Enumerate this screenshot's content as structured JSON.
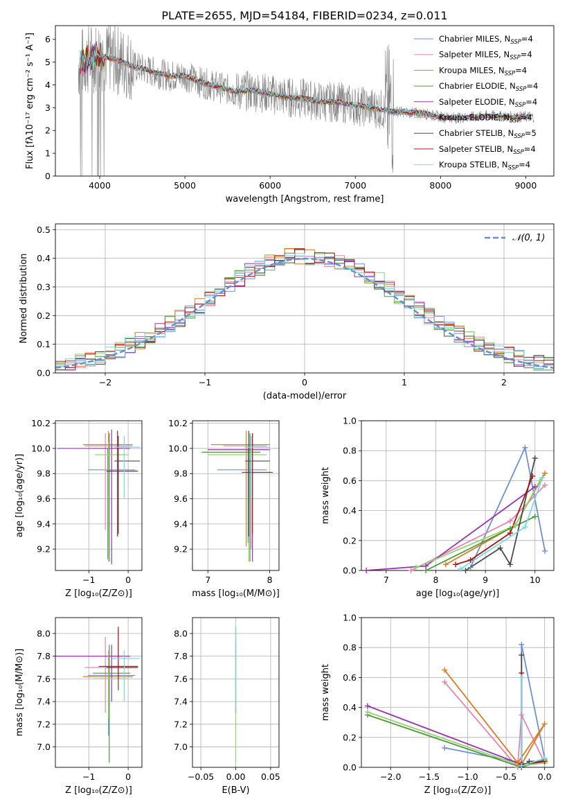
{
  "title": "PLATE=2655, MJD=54184, FIBERID=0234, z=0.011",
  "colors": [
    "#6a8fdc",
    "#e684b4",
    "#e07820",
    "#4d9a3a",
    "#9b30b6",
    "#95d36e",
    "#4a4a4a",
    "#b01414",
    "#7ad9e6"
  ],
  "legend": [
    {
      "name": "Chabrier MILES",
      "n": "4"
    },
    {
      "name": "Salpeter MILES",
      "n": "4"
    },
    {
      "name": "Kroupa MILES",
      "n": "4"
    },
    {
      "name": "Chabrier ELODIE",
      "n": "4"
    },
    {
      "name": "Salpeter ELODIE",
      "n": "4"
    },
    {
      "name": "Kroupa ELODIE",
      "n": "4"
    },
    {
      "name": "Chabrier STELIB",
      "n": "5"
    },
    {
      "name": "Salpeter STELIB",
      "n": "4"
    },
    {
      "name": "Kroupa STELIB",
      "n": "4"
    }
  ],
  "chart_data": [
    {
      "id": "spectrum",
      "type": "line",
      "xlabel": "wavelength [Angstrom, rest frame]",
      "ylabel": "Flux [fλ10⁻¹⁷ erg cm⁻² s⁻¹ A⁻¹]",
      "xlim": [
        3480,
        9330
      ],
      "ylim": [
        0,
        6.6
      ],
      "xticks": [
        "4000",
        "5000",
        "6000",
        "7000",
        "8000",
        "9000"
      ],
      "yticks": [
        "0",
        "1",
        "2",
        "3",
        "4",
        "5",
        "6"
      ],
      "data_range": [
        3750,
        9100
      ],
      "continuum_x": [
        3750,
        3850,
        4000,
        4200,
        4400,
        4600,
        4800,
        5000,
        5200,
        5400,
        5600,
        5800,
        6000,
        6200,
        6400,
        6600,
        6800,
        7000,
        7200,
        7400,
        7600,
        7800,
        8000,
        8200,
        8400,
        8600,
        8800,
        9000,
        9100
      ],
      "continuum_y": [
        4.9,
        5.1,
        5.3,
        5.1,
        4.8,
        4.6,
        4.4,
        4.4,
        4.1,
        3.9,
        3.7,
        3.75,
        3.6,
        3.45,
        3.4,
        3.25,
        3.25,
        3.1,
        3.0,
        2.85,
        2.8,
        2.75,
        2.6,
        2.55,
        2.6,
        2.65,
        2.6,
        2.6,
        2.6
      ]
    },
    {
      "id": "residuals",
      "type": "line",
      "xlabel": "(data-model)/error",
      "ylabel": "Normed distribution",
      "xlim": [
        -2.5,
        2.5
      ],
      "ylim": [
        0,
        0.52
      ],
      "xticks": [
        "−2",
        "−1",
        "0",
        "1",
        "2"
      ],
      "yticks": [
        "0.0",
        "0.1",
        "0.2",
        "0.3",
        "0.4",
        "0.5"
      ],
      "gaussian_label": "𝒩(0, 1)",
      "bin_width": 0.1,
      "bin_centers": [
        -2.45,
        -2.35,
        -2.25,
        -2.15,
        -2.05,
        -1.95,
        -1.85,
        -1.75,
        -1.65,
        -1.55,
        -1.45,
        -1.35,
        -1.25,
        -1.15,
        -1.05,
        -0.95,
        -0.85,
        -0.75,
        -0.65,
        -0.55,
        -0.45,
        -0.35,
        -0.25,
        -0.15,
        -0.05,
        0.05,
        0.15,
        0.25,
        0.35,
        0.45,
        0.55,
        0.65,
        0.75,
        0.85,
        0.95,
        1.05,
        1.15,
        1.25,
        1.35,
        1.45,
        1.55,
        1.65,
        1.75,
        1.85,
        1.95,
        2.05,
        2.15,
        2.25,
        2.35,
        2.45
      ],
      "series_mean": [
        0.022,
        0.028,
        0.038,
        0.048,
        0.058,
        0.07,
        0.082,
        0.098,
        0.112,
        0.13,
        0.148,
        0.17,
        0.19,
        0.212,
        0.234,
        0.257,
        0.28,
        0.305,
        0.33,
        0.352,
        0.37,
        0.385,
        0.395,
        0.41,
        0.405,
        0.4,
        0.4,
        0.395,
        0.39,
        0.375,
        0.36,
        0.34,
        0.32,
        0.295,
        0.27,
        0.247,
        0.222,
        0.2,
        0.178,
        0.157,
        0.137,
        0.118,
        0.101,
        0.087,
        0.074,
        0.062,
        0.051,
        0.041,
        0.033,
        0.026
      ]
    },
    {
      "id": "age_vs_z",
      "type": "scatter",
      "xlabel": "Z [log₁₀(Z/Z⊙)]",
      "ylabel": "age  [log₁₀(age/yr)]",
      "xlim": [
        -1.85,
        0.35
      ],
      "ylim": [
        9.03,
        10.22
      ],
      "xticks": [
        "−1",
        "0"
      ],
      "yticks": [
        "9.2",
        "9.4",
        "9.6",
        "9.8",
        "10.0",
        "10.2"
      ],
      "points": [
        {
          "x": -0.52,
          "y": 9.83,
          "xe": [
            -1.02,
            0.18
          ],
          "ye": [
            9.12,
            10.0
          ]
        },
        {
          "x": -0.58,
          "y": 10.02,
          "xe": [
            -1.1,
            0.1
          ],
          "ye": [
            9.35,
            10.12
          ]
        },
        {
          "x": -0.5,
          "y": 10.03,
          "xe": [
            -1.15,
            0.12
          ],
          "ye": [
            9.22,
            10.14
          ]
        },
        {
          "x": -0.48,
          "y": 10.0,
          "xe": [
            -0.9,
            0.05
          ],
          "ye": [
            9.1,
            10.12
          ]
        },
        {
          "x": -0.42,
          "y": 10.0,
          "xe": [
            -1.8,
            0.05
          ],
          "ye": [
            9.08,
            10.15
          ]
        },
        {
          "x": -0.5,
          "y": 9.95,
          "xe": [
            -0.85,
            0.0
          ],
          "ye": [
            9.1,
            10.05
          ]
        },
        {
          "x": -0.25,
          "y": 9.9,
          "xe": [
            -0.35,
            0.3
          ],
          "ye": [
            9.32,
            10.1
          ]
        },
        {
          "x": -0.27,
          "y": 9.82,
          "xe": [
            -0.55,
            0.25
          ],
          "ye": [
            9.3,
            10.14
          ]
        },
        {
          "x": -0.1,
          "y": 10.01,
          "xe": [
            -0.35,
            0.3
          ],
          "ye": [
            9.6,
            10.1
          ]
        }
      ]
    },
    {
      "id": "age_vs_mass",
      "type": "scatter",
      "xlabel": "mass [log₁₀(M/M⊙)]",
      "ylabel": "",
      "xlim": [
        6.75,
        8.15
      ],
      "ylim": [
        9.03,
        10.22
      ],
      "xticks": [
        "7",
        "8"
      ],
      "yticks": [
        "9.2",
        "9.4",
        "9.6",
        "9.8",
        "10.0",
        "10.2"
      ],
      "points": [
        {
          "x": 7.65,
          "y": 9.83,
          "xe": [
            7.15,
            7.95
          ],
          "ye": [
            9.25,
            10.0
          ]
        },
        {
          "x": 7.7,
          "y": 10.02,
          "xe": [
            7.25,
            7.95
          ],
          "ye": [
            9.2,
            10.1
          ]
        },
        {
          "x": 7.62,
          "y": 10.03,
          "xe": [
            7.05,
            8.0
          ],
          "ye": [
            9.22,
            10.14
          ]
        },
        {
          "x": 7.68,
          "y": 9.97,
          "xe": [
            6.9,
            7.85
          ],
          "ye": [
            9.1,
            10.12
          ]
        },
        {
          "x": 7.72,
          "y": 9.99,
          "xe": [
            7.0,
            8.0
          ],
          "ye": [
            9.1,
            10.12
          ]
        },
        {
          "x": 7.66,
          "y": 9.95,
          "xe": [
            7.0,
            7.95
          ],
          "ye": [
            9.1,
            10.02
          ]
        },
        {
          "x": 7.66,
          "y": 9.9,
          "xe": [
            7.6,
            8.0
          ],
          "ye": [
            9.3,
            10.14
          ]
        },
        {
          "x": 7.72,
          "y": 9.81,
          "xe": [
            7.55,
            8.05
          ],
          "ye": [
            9.32,
            10.12
          ]
        },
        {
          "x": 7.7,
          "y": 10.01,
          "xe": [
            7.6,
            8.0
          ],
          "ye": [
            9.6,
            10.1
          ]
        }
      ]
    },
    {
      "id": "weight_vs_age",
      "type": "line",
      "xlabel": "age  [log₁₀(age/yr)]",
      "ylabel": "mass weight",
      "xlim": [
        6.5,
        10.38
      ],
      "ylim": [
        0,
        1.0
      ],
      "xticks": [
        "7",
        "8",
        "9",
        "10"
      ],
      "yticks": [
        "0.0",
        "0.2",
        "0.4",
        "0.6",
        "0.8",
        "1.0"
      ],
      "series": [
        {
          "x": [
            8.7,
            9.8,
            10.2
          ],
          "y": [
            0.02,
            0.82,
            0.13
          ]
        },
        {
          "x": [
            7.5,
            9.5,
            10.2
          ],
          "y": [
            0.0,
            0.33,
            0.57
          ]
        },
        {
          "x": [
            8.2,
            9.6,
            10.2
          ],
          "y": [
            0.04,
            0.3,
            0.65
          ]
        },
        {
          "x": [
            7.8,
            9.5,
            10.0
          ],
          "y": [
            0.0,
            0.28,
            0.36
          ]
        },
        {
          "x": [
            6.6,
            7.8,
            10.0
          ],
          "y": [
            0.0,
            0.03,
            0.56
          ]
        },
        {
          "x": [
            7.6,
            9.6,
            10.1
          ],
          "y": [
            0.02,
            0.3,
            0.6
          ]
        },
        {
          "x": [
            8.6,
            9.3,
            9.5,
            10.0
          ],
          "y": [
            0.0,
            0.15,
            0.04,
            0.75
          ]
        },
        {
          "x": [
            8.4,
            8.7,
            9.5,
            9.95
          ],
          "y": [
            0.04,
            0.07,
            0.25,
            0.63
          ]
        },
        {
          "x": [
            8.5,
            9.8,
            10.15
          ],
          "y": [
            0.01,
            0.29,
            0.62
          ]
        }
      ]
    },
    {
      "id": "mass_vs_z",
      "type": "scatter",
      "xlabel": "Z [log₁₀(Z/Z⊙)]",
      "ylabel": "mass [log₁₀(M/M⊙)]",
      "xlim": [
        -1.85,
        0.35
      ],
      "ylim": [
        6.82,
        8.14
      ],
      "xticks": [
        "−1",
        "0"
      ],
      "yticks": [
        "7.0",
        "7.2",
        "7.4",
        "7.6",
        "7.8",
        "8.0"
      ],
      "points": [
        {
          "x": -0.5,
          "y": 7.63,
          "xe": [
            -1.02,
            0.18
          ],
          "ye": [
            7.1,
            7.8
          ]
        },
        {
          "x": -0.58,
          "y": 7.7,
          "xe": [
            -1.1,
            0.1
          ],
          "ye": [
            7.3,
            7.97
          ]
        },
        {
          "x": -0.5,
          "y": 7.62,
          "xe": [
            -1.15,
            0.12
          ],
          "ye": [
            7.4,
            7.85
          ]
        },
        {
          "x": -0.48,
          "y": 7.65,
          "xe": [
            -0.9,
            0.05
          ],
          "ye": [
            6.86,
            7.9
          ]
        },
        {
          "x": -0.42,
          "y": 7.8,
          "xe": [
            -1.85,
            0.05
          ],
          "ye": [
            7.4,
            7.9
          ]
        },
        {
          "x": -0.5,
          "y": 7.6,
          "xe": [
            -0.9,
            0.0
          ],
          "ye": [
            7.25,
            7.85
          ]
        },
        {
          "x": -0.25,
          "y": 7.71,
          "xe": [
            -0.75,
            0.25
          ],
          "ye": [
            7.5,
            8.03
          ]
        },
        {
          "x": -0.25,
          "y": 7.7,
          "xe": [
            -0.55,
            0.25
          ],
          "ye": [
            7.6,
            8.06
          ]
        },
        {
          "x": -0.1,
          "y": 7.78,
          "xe": [
            -0.4,
            0.3
          ],
          "ye": [
            7.4,
            7.85
          ]
        }
      ]
    },
    {
      "id": "mass_vs_ebv",
      "type": "scatter",
      "xlabel": "E(B-V)",
      "ylabel": "",
      "xlim": [
        -0.062,
        0.062
      ],
      "ylim": [
        6.82,
        8.14
      ],
      "xticks": [
        "−0.05",
        "0.00",
        "0.05"
      ],
      "yticks": [
        "7.0",
        "7.2",
        "7.4",
        "7.6",
        "7.8",
        "8.0"
      ],
      "points": [
        {
          "x": 0.0,
          "y": 7.6,
          "ye": [
            7.3,
            7.92
          ]
        },
        {
          "x": 0.0,
          "y": 7.7,
          "ye": [
            7.3,
            8.06
          ]
        },
        {
          "x": 0.0,
          "y": 7.65,
          "ye": [
            6.86,
            7.95
          ]
        },
        {
          "x": 0.0,
          "y": 7.7,
          "ye": [
            7.35,
            8.06
          ]
        }
      ]
    },
    {
      "id": "weight_vs_z",
      "type": "line",
      "xlabel": "Z [log₁₀(Z/Z⊙)]",
      "ylabel": "mass weight",
      "xlim": [
        -2.38,
        0.12
      ],
      "ylim": [
        0,
        1.0
      ],
      "xticks": [
        "−2.0",
        "−1.5",
        "−1.0",
        "−0.5",
        "0.0"
      ],
      "yticks": [
        "0.0",
        "0.2",
        "0.4",
        "0.6",
        "0.8",
        "1.0"
      ],
      "series": [
        {
          "x": [
            -1.3,
            -0.3,
            -0.3,
            0.0
          ],
          "y": [
            0.13,
            0.03,
            0.82,
            0.06
          ]
        },
        {
          "x": [
            -1.3,
            -0.35,
            -0.3,
            0.0
          ],
          "y": [
            0.57,
            0.0,
            0.35,
            0.03
          ]
        },
        {
          "x": [
            -1.3,
            -0.35,
            0.0,
            -0.3
          ],
          "y": [
            0.65,
            0.03,
            0.29,
            0.02
          ]
        },
        {
          "x": [
            -2.3,
            -0.3,
            0.0
          ],
          "y": [
            0.35,
            0.0,
            0.05
          ]
        },
        {
          "x": [
            -2.3,
            -0.3,
            0.0
          ],
          "y": [
            0.41,
            0.02,
            0.03
          ]
        },
        {
          "x": [
            -2.3,
            -0.3,
            0.0
          ],
          "y": [
            0.37,
            0.01,
            0.03
          ]
        },
        {
          "x": [
            -0.3,
            -0.3,
            -0.2,
            0.0
          ],
          "y": [
            0.75,
            0.0,
            0.04,
            0.04
          ]
        },
        {
          "x": [
            -0.3,
            -0.3,
            0.0
          ],
          "y": [
            0.63,
            0.02,
            0.04
          ]
        },
        {
          "x": [
            -0.3,
            -0.3,
            0.0
          ],
          "y": [
            0.6,
            0.01,
            0.06
          ]
        }
      ]
    }
  ]
}
